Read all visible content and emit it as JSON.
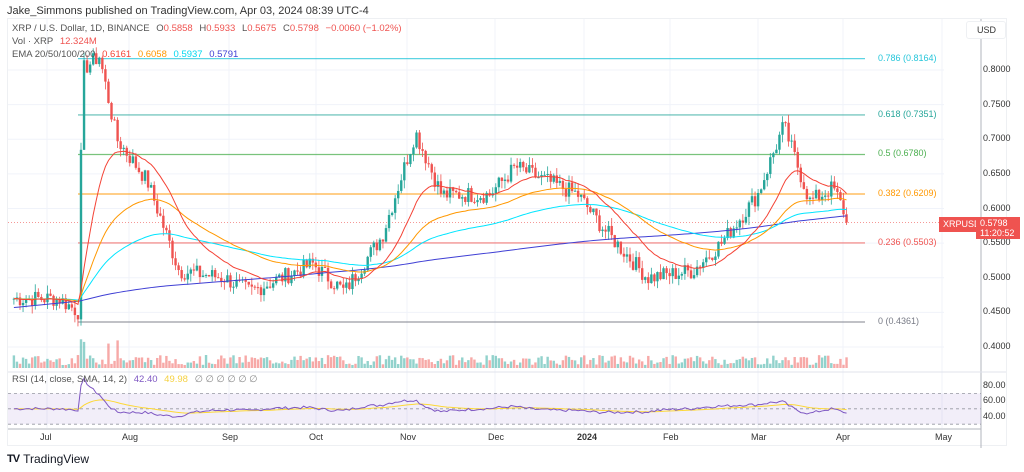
{
  "header": {
    "published": "Jake_Simmons published on TradingView.com, Apr 03, 2024 08:39 UTC-4"
  },
  "legend": {
    "symbol": "XRP / U.S. Dollar, 1D, BINANCE",
    "o_label": "O",
    "o": "0.5858",
    "h_label": "H",
    "h": "0.5933",
    "l_label": "L",
    "l": "0.5675",
    "c_label": "C",
    "c": "0.5798",
    "change": "−0.0060 (−1.02%)",
    "vol_label": "Vol · XRP",
    "vol": "12.324M",
    "ema_label": "EMA 20/50/100/200",
    "ema20": "0.6161",
    "ema50": "0.6058",
    "ema100": "0.5937",
    "ema200": "0.5791",
    "rsi_label": "RSI (14, close, SMA, 14, 2)",
    "rsi": "42.40",
    "rsi_sma": "49.98",
    "rsi_empty": "∅ ∅ ∅ ∅ ∅ ∅"
  },
  "price_axis": {
    "currency": "USD",
    "ticks": [
      "0.8000",
      "0.7500",
      "0.7000",
      "0.6500",
      "0.6000",
      "0.5500",
      "0.5000",
      "0.4500",
      "0.4000"
    ],
    "last_symbol": "XRPUSD",
    "last_price": "0.5798",
    "countdown": "11:20:52"
  },
  "rsi_axis": {
    "ticks": [
      "80.00",
      "60.00",
      "40.00"
    ]
  },
  "time_axis": {
    "labels": [
      "Jul",
      "Aug",
      "Sep",
      "Oct",
      "Nov",
      "Dec",
      "2024",
      "Feb",
      "Mar",
      "Apr",
      "May"
    ]
  },
  "fib_levels": [
    {
      "label": "0.786 (0.8164)",
      "color": "#26c6da"
    },
    {
      "label": "0.618 (0.7351)",
      "color": "#26a69a"
    },
    {
      "label": "0.5 (0.6780)",
      "color": "#4caf50"
    },
    {
      "label": "0.382 (0.6209)",
      "color": "#ff9800"
    },
    {
      "label": "0.236 (0.5503)",
      "color": "#ef5350"
    },
    {
      "label": "0 (0.4361)",
      "color": "#787b86"
    }
  ],
  "footer": {
    "brand": "TradingView"
  },
  "colors": {
    "up": "#26a69a",
    "down": "#ef5350",
    "ema20": "#f44336",
    "ema50": "#ff9800",
    "ema100": "#00e5ff",
    "ema200": "#3f3fd4",
    "rsi": "#7e57c2",
    "rsi_sma": "#fdd835"
  },
  "chart_data": {
    "type": "candlestick",
    "title": "XRP / U.S. Dollar, 1D, BINANCE",
    "x_labels": [
      "Jul",
      "Aug",
      "Sep",
      "Oct",
      "Nov",
      "Dec",
      "2024",
      "Feb",
      "Mar",
      "Apr",
      "May"
    ],
    "ylim": [
      0.37,
      0.84
    ],
    "approx_close_path": [
      {
        "date": "Jun 20",
        "close": 0.47
      },
      {
        "date": "Jul 05",
        "close": 0.47
      },
      {
        "date": "Jul 12",
        "close": 0.45
      },
      {
        "date": "Jul 13",
        "close": 0.8
      },
      {
        "date": "Jul 19",
        "close": 0.82
      },
      {
        "date": "Jul 25",
        "close": 0.7
      },
      {
        "date": "Aug 05",
        "close": 0.64
      },
      {
        "date": "Aug 16",
        "close": 0.51
      },
      {
        "date": "Sep 01",
        "close": 0.5
      },
      {
        "date": "Sep 10",
        "close": 0.48
      },
      {
        "date": "Oct 01",
        "close": 0.52
      },
      {
        "date": "Oct 12",
        "close": 0.48
      },
      {
        "date": "Oct 25",
        "close": 0.56
      },
      {
        "date": "Nov 06",
        "close": 0.71
      },
      {
        "date": "Nov 15",
        "close": 0.62
      },
      {
        "date": "Dec 01",
        "close": 0.62
      },
      {
        "date": "Dec 10",
        "close": 0.66
      },
      {
        "date": "Jan 01",
        "close": 0.62
      },
      {
        "date": "Jan 10",
        "close": 0.57
      },
      {
        "date": "Jan 25",
        "close": 0.5
      },
      {
        "date": "Feb 10",
        "close": 0.51
      },
      {
        "date": "Feb 20",
        "close": 0.55
      },
      {
        "date": "Mar 02",
        "close": 0.62
      },
      {
        "date": "Mar 11",
        "close": 0.72
      },
      {
        "date": "Mar 20",
        "close": 0.61
      },
      {
        "date": "Mar 28",
        "close": 0.63
      },
      {
        "date": "Apr 03",
        "close": 0.5798
      }
    ],
    "fibonacci": [
      {
        "ratio": 0.786,
        "price": 0.8164
      },
      {
        "ratio": 0.618,
        "price": 0.7351
      },
      {
        "ratio": 0.5,
        "price": 0.678
      },
      {
        "ratio": 0.382,
        "price": 0.6209
      },
      {
        "ratio": 0.236,
        "price": 0.5503
      },
      {
        "ratio": 0,
        "price": 0.4361
      }
    ],
    "ema": {
      "ema20": 0.6161,
      "ema50": 0.6058,
      "ema100": 0.5937,
      "ema200": 0.5791
    },
    "rsi": {
      "value": 42.4,
      "sma": 49.98,
      "bands": [
        70,
        50,
        30
      ],
      "axis": [
        80,
        60,
        40
      ]
    },
    "volume_last": "12.324M"
  }
}
